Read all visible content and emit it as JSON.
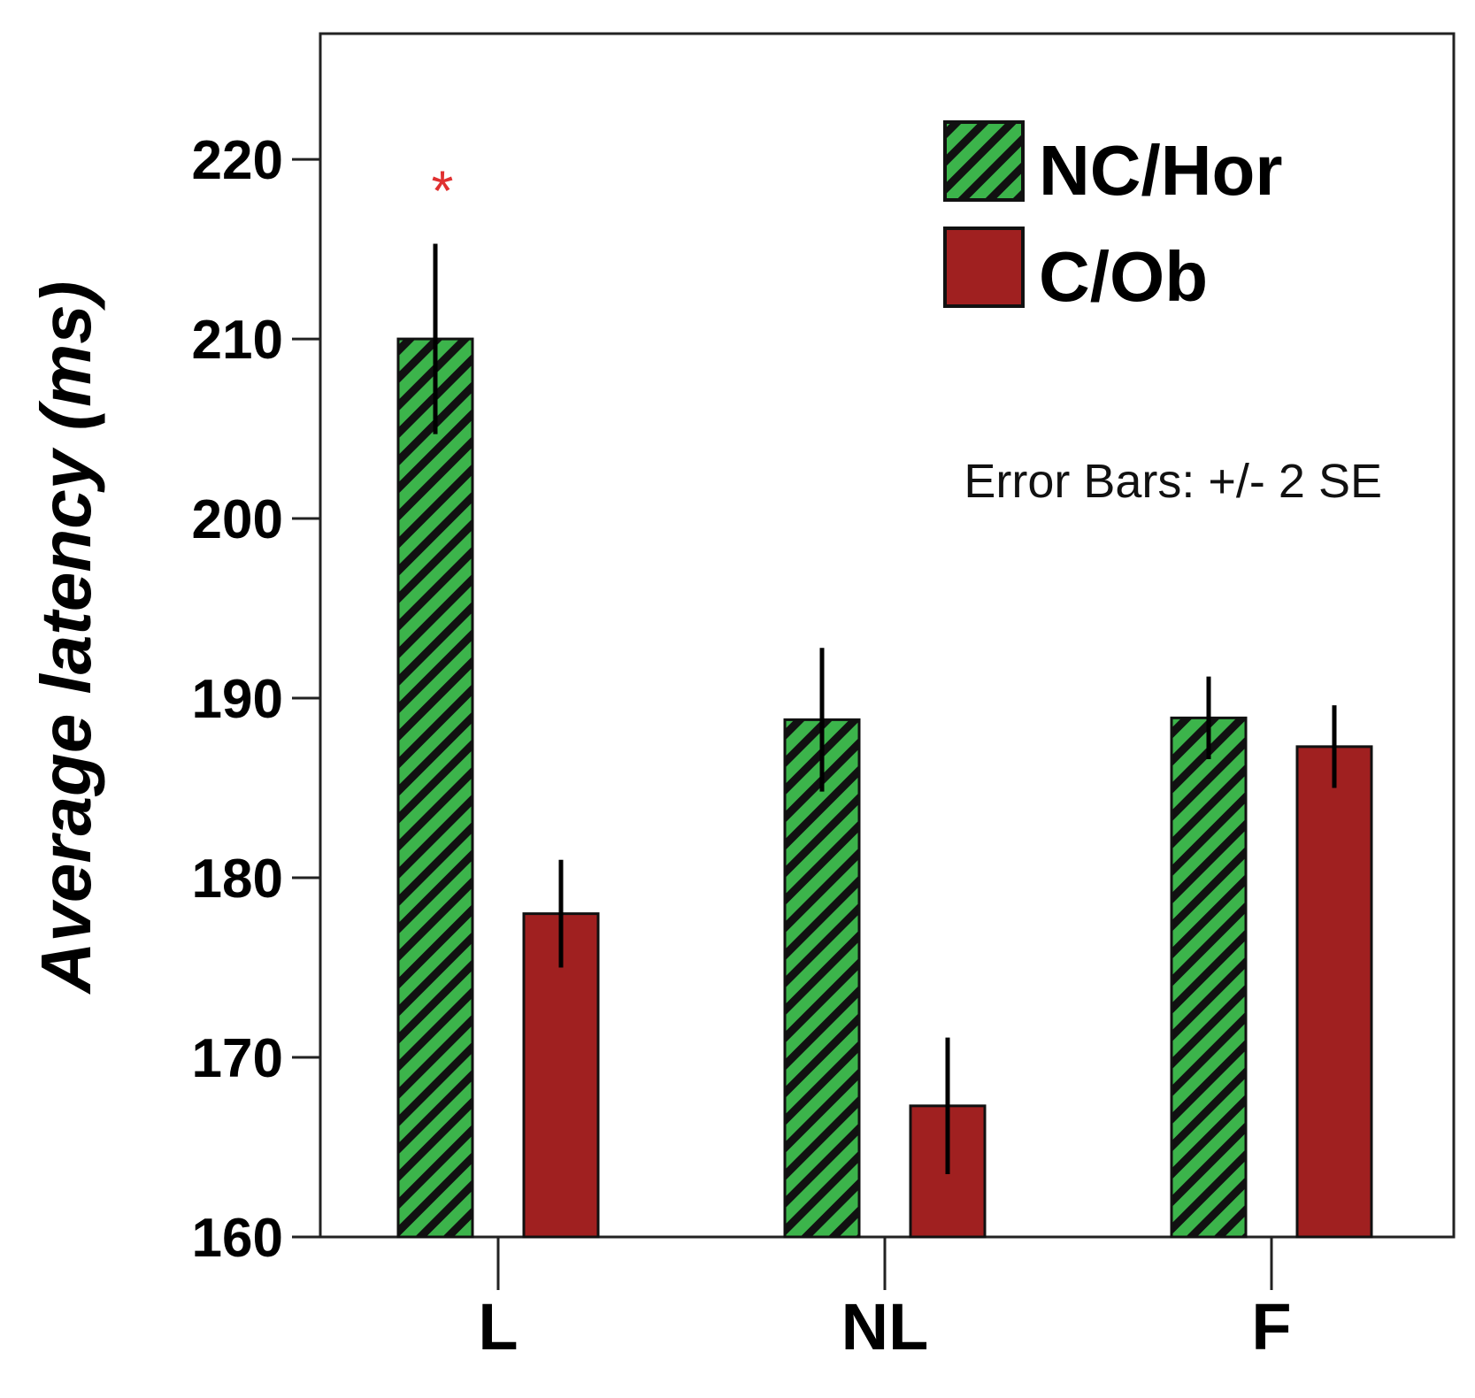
{
  "chart_data": {
    "type": "bar",
    "ylabel": "Average latency (ms)",
    "xlabel": "",
    "ylim": [
      160,
      227
    ],
    "yticks": [
      160,
      170,
      180,
      190,
      200,
      210,
      220
    ],
    "categories": [
      "L",
      "NL",
      "F"
    ],
    "grid": false,
    "legend_position": "top-right",
    "series": [
      {
        "name": "NC/Hor",
        "values": [
          210,
          188.8,
          188.9
        ],
        "error": [
          5.3,
          4.0,
          2.3
        ],
        "color": "#3cb44b",
        "pattern": "diagonal-stripes"
      },
      {
        "name": "C/Ob",
        "values": [
          178,
          167.3,
          187.3
        ],
        "error": [
          3.0,
          3.8,
          2.3
        ],
        "color": "#a02020",
        "pattern": "solid"
      }
    ],
    "annotations": [
      {
        "text": "Error Bars: +/- 2 SE"
      },
      {
        "text": "*",
        "category": "L",
        "series": "NC/Hor",
        "color": "#e03030"
      }
    ]
  }
}
